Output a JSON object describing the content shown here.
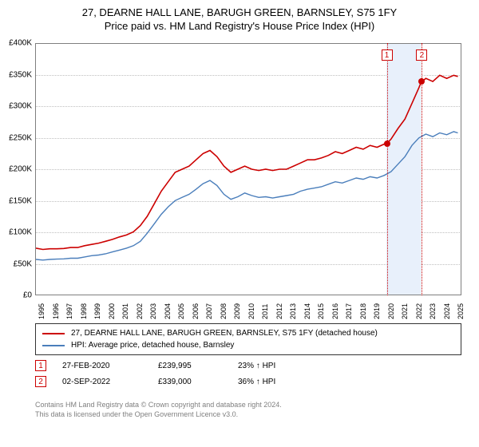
{
  "title": {
    "line1": "27, DEARNE HALL LANE, BARUGH GREEN, BARNSLEY, S75 1FY",
    "line2": "Price paid vs. HM Land Registry's House Price Index (HPI)"
  },
  "chart": {
    "background_color": "#ffffff",
    "border_color": "#7f7f7f",
    "grid_color": "#bfbfbf",
    "x_start": 1995,
    "x_end": 2025.5,
    "y_min": 0,
    "y_max": 400000,
    "yticks": [
      {
        "v": 0,
        "label": "£0"
      },
      {
        "v": 50000,
        "label": "£50K"
      },
      {
        "v": 100000,
        "label": "£100K"
      },
      {
        "v": 150000,
        "label": "£150K"
      },
      {
        "v": 200000,
        "label": "£200K"
      },
      {
        "v": 250000,
        "label": "£250K"
      },
      {
        "v": 300000,
        "label": "£300K"
      },
      {
        "v": 350000,
        "label": "£350K"
      },
      {
        "v": 400000,
        "label": "£400K"
      }
    ],
    "xticks": [
      1995,
      1996,
      1997,
      1998,
      1999,
      2000,
      2001,
      2002,
      2003,
      2004,
      2005,
      2006,
      2007,
      2008,
      2009,
      2010,
      2011,
      2012,
      2013,
      2014,
      2015,
      2016,
      2017,
      2018,
      2019,
      2020,
      2021,
      2022,
      2023,
      2024,
      2025
    ],
    "xtick_fontsize": 9,
    "ytick_fontsize": 10,
    "highlight_band": {
      "from": 2020.16,
      "to": 2022.67,
      "color": "#e8f0fb"
    },
    "series": [
      {
        "name": "property",
        "label": "27, DEARNE HALL LANE, BARUGH GREEN, BARNSLEY, S75 1FY (detached house)",
        "color": "#cc0000",
        "width": 1.6,
        "points": [
          [
            1995.0,
            74000
          ],
          [
            1995.5,
            72000
          ],
          [
            1996.0,
            73000
          ],
          [
            1996.5,
            73000
          ],
          [
            1997.0,
            73500
          ],
          [
            1997.5,
            75000
          ],
          [
            1998.0,
            75000
          ],
          [
            1998.5,
            78000
          ],
          [
            1999.0,
            80000
          ],
          [
            1999.5,
            82000
          ],
          [
            2000.0,
            85000
          ],
          [
            2000.5,
            88000
          ],
          [
            2001.0,
            92000
          ],
          [
            2001.5,
            95000
          ],
          [
            2002.0,
            100000
          ],
          [
            2002.5,
            110000
          ],
          [
            2003.0,
            125000
          ],
          [
            2003.5,
            145000
          ],
          [
            2004.0,
            165000
          ],
          [
            2004.5,
            180000
          ],
          [
            2005.0,
            195000
          ],
          [
            2005.5,
            200000
          ],
          [
            2006.0,
            205000
          ],
          [
            2006.5,
            215000
          ],
          [
            2007.0,
            225000
          ],
          [
            2007.5,
            230000
          ],
          [
            2008.0,
            220000
          ],
          [
            2008.5,
            205000
          ],
          [
            2009.0,
            195000
          ],
          [
            2009.5,
            200000
          ],
          [
            2010.0,
            205000
          ],
          [
            2010.5,
            200000
          ],
          [
            2011.0,
            198000
          ],
          [
            2011.5,
            200000
          ],
          [
            2012.0,
            198000
          ],
          [
            2012.5,
            200000
          ],
          [
            2013.0,
            200000
          ],
          [
            2013.5,
            205000
          ],
          [
            2014.0,
            210000
          ],
          [
            2014.5,
            215000
          ],
          [
            2015.0,
            215000
          ],
          [
            2015.5,
            218000
          ],
          [
            2016.0,
            222000
          ],
          [
            2016.5,
            228000
          ],
          [
            2017.0,
            225000
          ],
          [
            2017.5,
            230000
          ],
          [
            2018.0,
            235000
          ],
          [
            2018.5,
            232000
          ],
          [
            2019.0,
            238000
          ],
          [
            2019.5,
            235000
          ],
          [
            2020.0,
            240000
          ],
          [
            2020.16,
            239995
          ],
          [
            2020.5,
            248000
          ],
          [
            2021.0,
            265000
          ],
          [
            2021.5,
            280000
          ],
          [
            2022.0,
            305000
          ],
          [
            2022.5,
            330000
          ],
          [
            2022.67,
            339000
          ],
          [
            2023.0,
            345000
          ],
          [
            2023.5,
            340000
          ],
          [
            2024.0,
            350000
          ],
          [
            2024.5,
            345000
          ],
          [
            2025.0,
            350000
          ],
          [
            2025.3,
            348000
          ]
        ]
      },
      {
        "name": "hpi",
        "label": "HPI: Average price, detached house, Barnsley",
        "color": "#4a7ebb",
        "width": 1.4,
        "points": [
          [
            1995.0,
            56000
          ],
          [
            1995.5,
            55000
          ],
          [
            1996.0,
            56000
          ],
          [
            1996.5,
            56500
          ],
          [
            1997.0,
            57000
          ],
          [
            1997.5,
            58000
          ],
          [
            1998.0,
            58000
          ],
          [
            1998.5,
            60000
          ],
          [
            1999.0,
            62000
          ],
          [
            1999.5,
            63000
          ],
          [
            2000.0,
            65000
          ],
          [
            2000.5,
            68000
          ],
          [
            2001.0,
            71000
          ],
          [
            2001.5,
            74000
          ],
          [
            2002.0,
            78000
          ],
          [
            2002.5,
            85000
          ],
          [
            2003.0,
            98000
          ],
          [
            2003.5,
            113000
          ],
          [
            2004.0,
            128000
          ],
          [
            2004.5,
            140000
          ],
          [
            2005.0,
            150000
          ],
          [
            2005.5,
            155000
          ],
          [
            2006.0,
            160000
          ],
          [
            2006.5,
            168000
          ],
          [
            2007.0,
            177000
          ],
          [
            2007.5,
            182000
          ],
          [
            2008.0,
            174000
          ],
          [
            2008.5,
            160000
          ],
          [
            2009.0,
            152000
          ],
          [
            2009.5,
            156000
          ],
          [
            2010.0,
            162000
          ],
          [
            2010.5,
            158000
          ],
          [
            2011.0,
            155000
          ],
          [
            2011.5,
            156000
          ],
          [
            2012.0,
            154000
          ],
          [
            2012.5,
            156000
          ],
          [
            2013.0,
            158000
          ],
          [
            2013.5,
            160000
          ],
          [
            2014.0,
            165000
          ],
          [
            2014.5,
            168000
          ],
          [
            2015.0,
            170000
          ],
          [
            2015.5,
            172000
          ],
          [
            2016.0,
            176000
          ],
          [
            2016.5,
            180000
          ],
          [
            2017.0,
            178000
          ],
          [
            2017.5,
            182000
          ],
          [
            2018.0,
            186000
          ],
          [
            2018.5,
            184000
          ],
          [
            2019.0,
            188000
          ],
          [
            2019.5,
            186000
          ],
          [
            2020.0,
            190000
          ],
          [
            2020.5,
            196000
          ],
          [
            2021.0,
            208000
          ],
          [
            2021.5,
            220000
          ],
          [
            2022.0,
            238000
          ],
          [
            2022.5,
            250000
          ],
          [
            2023.0,
            256000
          ],
          [
            2023.5,
            252000
          ],
          [
            2024.0,
            258000
          ],
          [
            2024.5,
            255000
          ],
          [
            2025.0,
            260000
          ],
          [
            2025.3,
            258000
          ]
        ]
      }
    ],
    "sale_markers": [
      {
        "n": "1",
        "x": 2020.16,
        "price": 239995,
        "color": "#cc0000"
      },
      {
        "n": "2",
        "x": 2022.67,
        "price": 339000,
        "color": "#cc0000"
      }
    ]
  },
  "legend": {
    "border_color": "#333333"
  },
  "sales": [
    {
      "n": "1",
      "date": "27-FEB-2020",
      "price": "£239,995",
      "pct": "23% ↑ HPI",
      "color": "#cc0000"
    },
    {
      "n": "2",
      "date": "02-SEP-2022",
      "price": "£339,000",
      "pct": "36% ↑ HPI",
      "color": "#cc0000"
    }
  ],
  "footer": {
    "line1": "Contains HM Land Registry data © Crown copyright and database right 2024.",
    "line2": "This data is licensed under the Open Government Licence v3.0."
  }
}
